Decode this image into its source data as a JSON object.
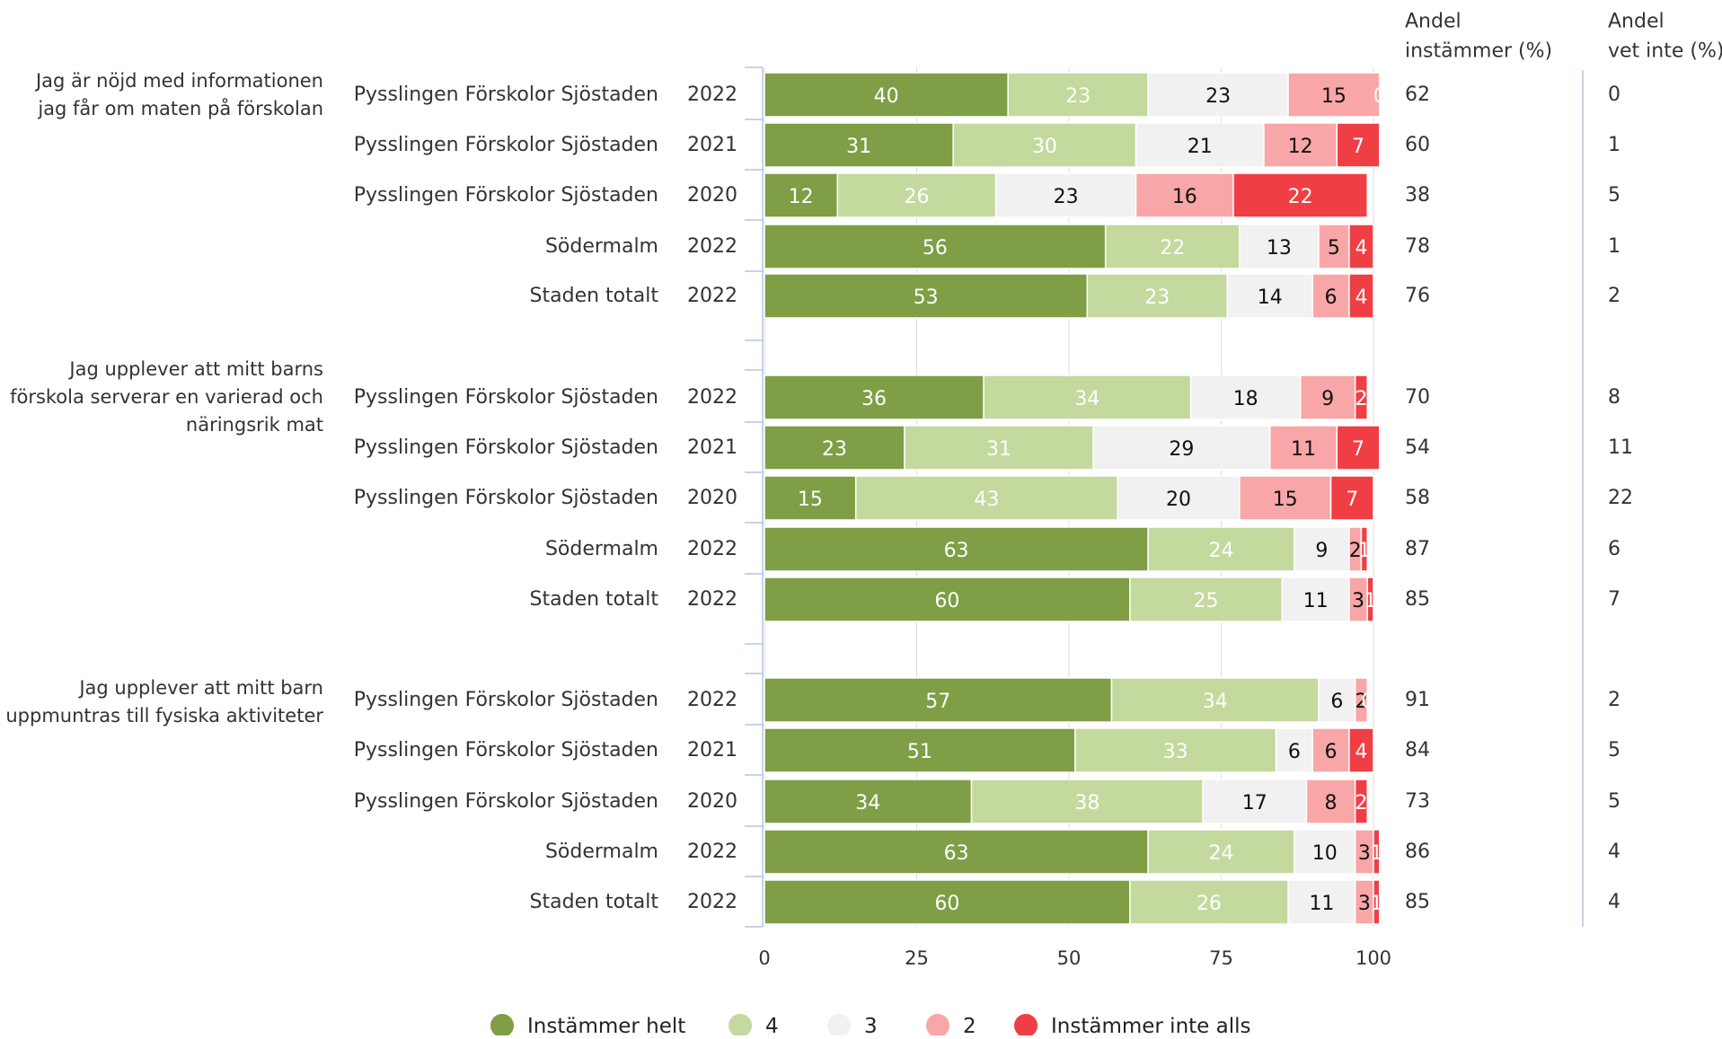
{
  "header": {
    "col_agree": [
      "Andel",
      "instämmer (%)"
    ],
    "col_dontknow": [
      "Andel",
      "vet inte (%)"
    ]
  },
  "colors": {
    "series": [
      "#7f9e45",
      "#c4d99e",
      "#f1f1f1",
      "#f8a6a7",
      "#f03e45"
    ],
    "label_light": "#ffffff",
    "label_dark": "#111111",
    "text": "#333333",
    "grid": "#dddddd",
    "axis": "#b8c4e0"
  },
  "chart_data": {
    "type": "bar",
    "orientation": "horizontal",
    "stacked": true,
    "xlim": [
      0,
      100
    ],
    "xticks": [
      0,
      25,
      50,
      75,
      100
    ],
    "grid": true,
    "legend_position": "bottom",
    "series": [
      {
        "name": "Instämmer helt"
      },
      {
        "name": "4"
      },
      {
        "name": "3"
      },
      {
        "name": "2"
      },
      {
        "name": "Instämmer inte alls"
      }
    ],
    "groups": [
      {
        "question": [
          "Jag är nöjd med informationen",
          "jag får om maten på förskolan"
        ],
        "rows": [
          {
            "label": "Pysslingen Förskolor Sjöstaden",
            "year": "2022",
            "values": [
              40,
              23,
              23,
              15,
              0
            ],
            "agree": "62",
            "dontknow": "0"
          },
          {
            "label": "Pysslingen Förskolor Sjöstaden",
            "year": "2021",
            "values": [
              31,
              30,
              21,
              12,
              7
            ],
            "agree": "60",
            "dontknow": "1"
          },
          {
            "label": "Pysslingen Förskolor Sjöstaden",
            "year": "2020",
            "values": [
              12,
              26,
              23,
              16,
              22
            ],
            "agree": "38",
            "dontknow": "5"
          },
          {
            "label": "Södermalm",
            "year": "2022",
            "values": [
              56,
              22,
              13,
              5,
              4
            ],
            "agree": "78",
            "dontknow": "1"
          },
          {
            "label": "Staden totalt",
            "year": "2022",
            "values": [
              53,
              23,
              14,
              6,
              4
            ],
            "agree": "76",
            "dontknow": "2"
          }
        ]
      },
      {
        "question": [
          "Jag upplever att mitt barns",
          "förskola serverar en varierad och",
          "näringsrik mat"
        ],
        "rows": [
          {
            "label": "Pysslingen Förskolor Sjöstaden",
            "year": "2022",
            "values": [
              36,
              34,
              18,
              9,
              2
            ],
            "agree": "70",
            "dontknow": "8"
          },
          {
            "label": "Pysslingen Förskolor Sjöstaden",
            "year": "2021",
            "values": [
              23,
              31,
              29,
              11,
              7
            ],
            "agree": "54",
            "dontknow": "11"
          },
          {
            "label": "Pysslingen Förskolor Sjöstaden",
            "year": "2020",
            "values": [
              15,
              43,
              20,
              15,
              7
            ],
            "agree": "58",
            "dontknow": "22"
          },
          {
            "label": "Södermalm",
            "year": "2022",
            "values": [
              63,
              24,
              9,
              2,
              1
            ],
            "agree": "87",
            "dontknow": "6"
          },
          {
            "label": "Staden totalt",
            "year": "2022",
            "values": [
              60,
              25,
              11,
              3,
              1
            ],
            "agree": "85",
            "dontknow": "7"
          }
        ]
      },
      {
        "question": [
          "Jag upplever att mitt barn",
          "uppmuntras till fysiska aktiviteter"
        ],
        "rows": [
          {
            "label": "Pysslingen Förskolor Sjöstaden",
            "year": "2022",
            "values": [
              57,
              34,
              6,
              2,
              0
            ],
            "agree": "91",
            "dontknow": "2"
          },
          {
            "label": "Pysslingen Förskolor Sjöstaden",
            "year": "2021",
            "values": [
              51,
              33,
              6,
              6,
              4
            ],
            "agree": "84",
            "dontknow": "5"
          },
          {
            "label": "Pysslingen Förskolor Sjöstaden",
            "year": "2020",
            "values": [
              34,
              38,
              17,
              8,
              2
            ],
            "agree": "73",
            "dontknow": "5"
          },
          {
            "label": "Södermalm",
            "year": "2022",
            "values": [
              63,
              24,
              10,
              3,
              1
            ],
            "agree": "86",
            "dontknow": "4"
          },
          {
            "label": "Staden totalt",
            "year": "2022",
            "values": [
              60,
              26,
              11,
              3,
              1
            ],
            "agree": "85",
            "dontknow": "4"
          }
        ]
      }
    ]
  }
}
